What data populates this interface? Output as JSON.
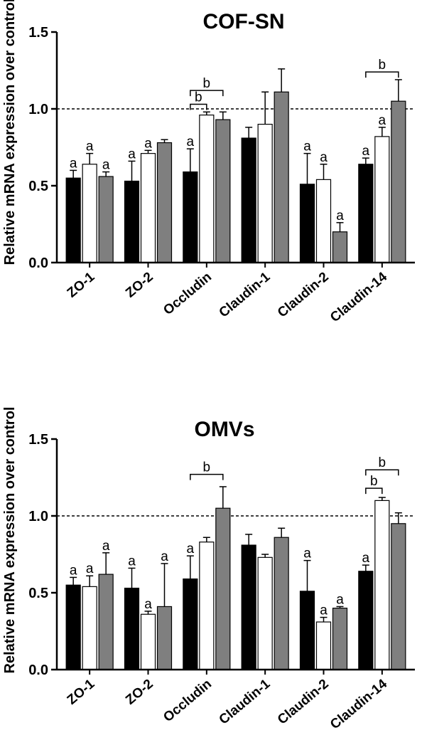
{
  "colors": {
    "series": [
      "#000000",
      "#ffffff",
      "#7f7f7f"
    ],
    "stroke": "#000000",
    "background": "#ffffff"
  },
  "chart_data": [
    {
      "type": "bar",
      "title": "COF-SN",
      "ylabel": "Relative mRNA expression over control",
      "xlabel": "",
      "ylim": [
        0,
        1.5
      ],
      "yticks": [
        "0.0",
        "0.5",
        "1.0",
        "1.5"
      ],
      "reference_line": 1.0,
      "categories": [
        "ZO-1",
        "ZO-2",
        "Occludin",
        "Claudin-1",
        "Claudin-2",
        "Claudin-14"
      ],
      "series": [
        {
          "values": [
            0.55,
            0.53,
            0.59,
            0.81,
            0.51,
            0.64
          ],
          "errors": [
            0.05,
            0.13,
            0.15,
            0.07,
            0.2,
            0.04
          ]
        },
        {
          "values": [
            0.64,
            0.71,
            0.96,
            0.9,
            0.54,
            0.82
          ],
          "errors": [
            0.07,
            0.02,
            0.02,
            0.21,
            0.1,
            0.06
          ]
        },
        {
          "values": [
            0.56,
            0.78,
            0.93,
            1.11,
            0.2,
            1.05
          ],
          "errors": [
            0.03,
            0.02,
            0.05,
            0.15,
            0.06,
            0.14
          ]
        }
      ],
      "letters": [
        {
          "cat": 0,
          "series": 0,
          "text": "a"
        },
        {
          "cat": 0,
          "series": 1,
          "text": "a"
        },
        {
          "cat": 0,
          "series": 2,
          "text": "a"
        },
        {
          "cat": 1,
          "series": 0,
          "text": "a"
        },
        {
          "cat": 1,
          "series": 1,
          "text": "a"
        },
        {
          "cat": 2,
          "series": 0,
          "text": "a"
        },
        {
          "cat": 4,
          "series": 0,
          "text": "a"
        },
        {
          "cat": 4,
          "series": 1,
          "text": "a"
        },
        {
          "cat": 4,
          "series": 2,
          "text": "a"
        },
        {
          "cat": 5,
          "series": 0,
          "text": "a"
        },
        {
          "cat": 5,
          "series": 1,
          "text": "a"
        }
      ],
      "brackets": [
        {
          "cat": 2,
          "from": 0,
          "to": 2,
          "level": 1.12,
          "text": "b"
        },
        {
          "cat": 2,
          "from": 0,
          "to": 1,
          "level": 1.03,
          "text": "b"
        },
        {
          "cat": 5,
          "from": 0,
          "to": 2,
          "level": 1.24,
          "text": "b"
        }
      ]
    },
    {
      "type": "bar",
      "title": "OMVs",
      "ylabel": "Relative mRNA expression over control",
      "xlabel": "",
      "ylim": [
        0,
        1.5
      ],
      "yticks": [
        "0.0",
        "0.5",
        "1.0",
        "1.5"
      ],
      "reference_line": 1.0,
      "categories": [
        "ZO-1",
        "ZO-2",
        "Occludin",
        "Claudin-1",
        "Claudin-2",
        "Claudin-14"
      ],
      "series": [
        {
          "values": [
            0.55,
            0.53,
            0.59,
            0.81,
            0.51,
            0.64
          ],
          "errors": [
            0.05,
            0.13,
            0.15,
            0.07,
            0.2,
            0.04
          ]
        },
        {
          "values": [
            0.54,
            0.36,
            0.83,
            0.73,
            0.31,
            1.1
          ],
          "errors": [
            0.07,
            0.02,
            0.03,
            0.02,
            0.03,
            0.02
          ]
        },
        {
          "values": [
            0.62,
            0.41,
            1.05,
            0.86,
            0.4,
            0.95
          ],
          "errors": [
            0.14,
            0.28,
            0.14,
            0.06,
            0.01,
            0.07
          ]
        }
      ],
      "letters": [
        {
          "cat": 0,
          "series": 0,
          "text": "a"
        },
        {
          "cat": 0,
          "series": 1,
          "text": "a"
        },
        {
          "cat": 0,
          "series": 2,
          "text": "a"
        },
        {
          "cat": 1,
          "series": 0,
          "text": "a"
        },
        {
          "cat": 1,
          "series": 1,
          "text": "a"
        },
        {
          "cat": 1,
          "series": 2,
          "text": "a"
        },
        {
          "cat": 2,
          "series": 0,
          "text": "a"
        },
        {
          "cat": 4,
          "series": 0,
          "text": "a"
        },
        {
          "cat": 4,
          "series": 1,
          "text": "a"
        },
        {
          "cat": 4,
          "series": 2,
          "text": "a"
        },
        {
          "cat": 5,
          "series": 0,
          "text": "a"
        }
      ],
      "brackets": [
        {
          "cat": 2,
          "from": 0,
          "to": 2,
          "level": 1.27,
          "text": "b"
        },
        {
          "cat": 5,
          "from": 0,
          "to": 2,
          "level": 1.3,
          "text": "b"
        },
        {
          "cat": 5,
          "from": 0,
          "to": 1,
          "level": 1.18,
          "text": "b"
        }
      ]
    }
  ]
}
